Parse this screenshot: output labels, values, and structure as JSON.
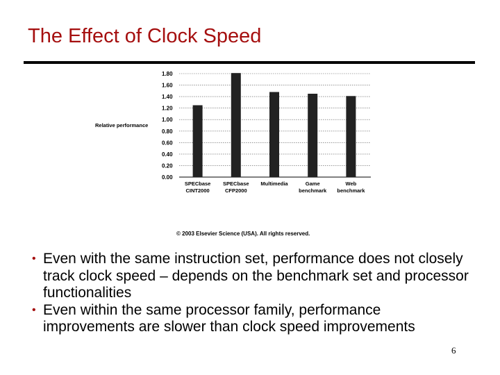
{
  "slide": {
    "title": "The Effect of Clock Speed",
    "copyright": "© 2003 Elsevier Science (USA). All rights reserved.",
    "bullets": [
      "Even with the same instruction set, performance does not closely track clock speed – depends on the benchmark set and processor functionalities",
      "Even within the same processor family, performance improvements are slower than clock speed improvements"
    ],
    "page_number": "6",
    "title_color": "#a50f0f"
  },
  "chart_data": {
    "type": "bar",
    "ylabel": "Relative performance",
    "ylim": [
      0,
      1.8
    ],
    "yticks": [
      "0.00",
      "0.20",
      "0.40",
      "0.60",
      "0.80",
      "1.00",
      "1.20",
      "1.40",
      "1.60",
      "1.80"
    ],
    "grid": true,
    "bar_color": "#222222",
    "categories": [
      [
        "SPECbase",
        "CINT2000"
      ],
      [
        "SPECbase",
        "CFP2000"
      ],
      [
        "Multimedia"
      ],
      [
        "Game",
        "benchmark"
      ],
      [
        "Web",
        "benchmark"
      ]
    ],
    "values": [
      1.25,
      1.81,
      1.48,
      1.45,
      1.41
    ]
  }
}
